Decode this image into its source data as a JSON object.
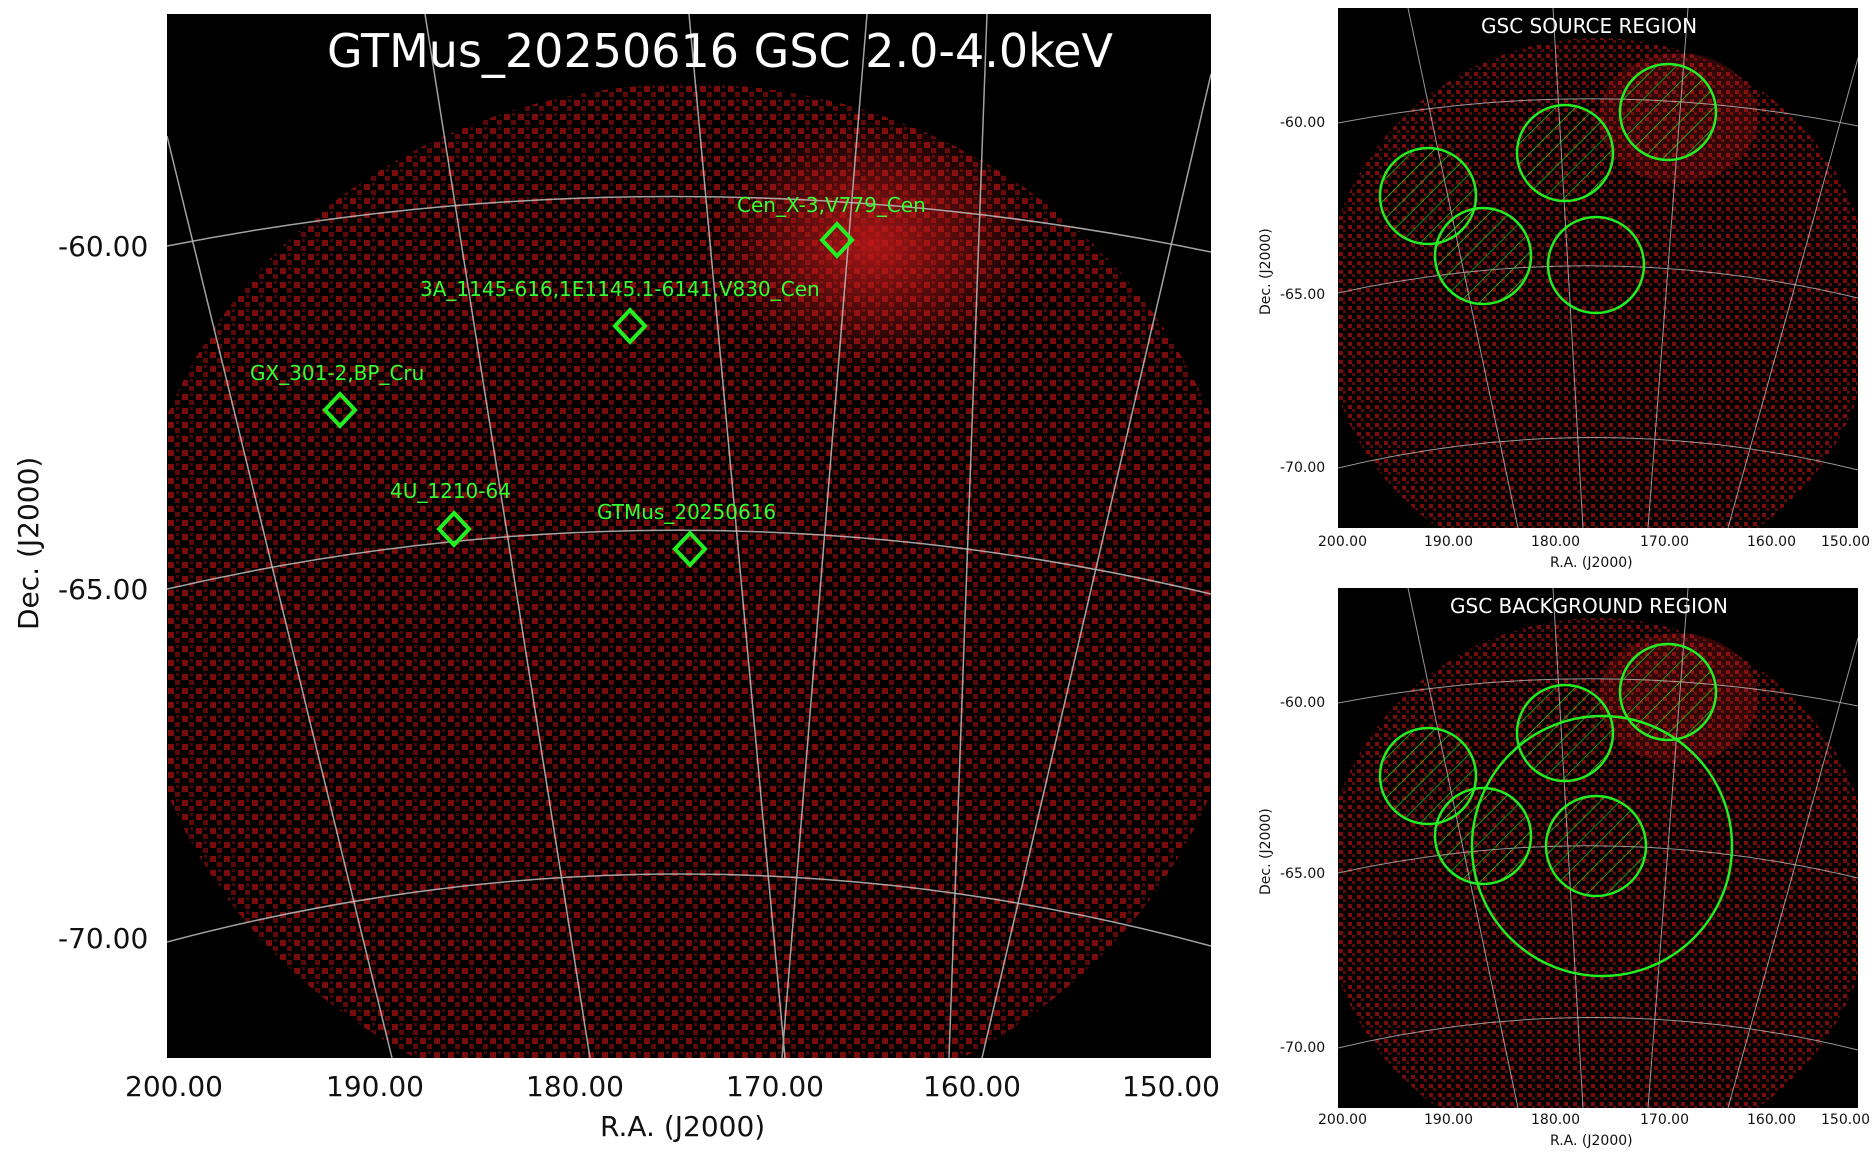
{
  "main_panel": {
    "title": "GTMus_20250616 GSC 2.0-4.0keV",
    "xlabel": "R.A. (J2000)",
    "ylabel": "Dec. (J2000)",
    "xticks": [
      "200.00",
      "190.00",
      "180.00",
      "170.00",
      "160.00",
      "150.00"
    ],
    "yticks": [
      "-60.00",
      "-65.00",
      "-70.00"
    ],
    "sources": [
      {
        "label": "Cen_X-3,V779_Cen"
      },
      {
        "label": "3A_1145-616,1E1145.1-6141,V830_Cen"
      },
      {
        "label": "GX_301-2,BP_Cru"
      },
      {
        "label": "4U_1210-64"
      },
      {
        "label": "GTMus_20250616"
      }
    ]
  },
  "source_region_panel": {
    "title": "GSC SOURCE REGION",
    "xlabel": "R.A. (J2000)",
    "ylabel": "Dec. (J2000)",
    "xticks": [
      "200.00",
      "190.00",
      "180.00",
      "170.00",
      "160.00",
      "150.00"
    ],
    "yticks": [
      "-60.00",
      "-65.00",
      "-70.00"
    ]
  },
  "background_region_panel": {
    "title": "GSC BACKGROUND REGION",
    "xlabel": "R.A. (J2000)",
    "ylabel": "Dec. (J2000)",
    "xticks": [
      "200.00",
      "190.00",
      "180.00",
      "170.00",
      "160.00",
      "150.00"
    ],
    "yticks": [
      "-60.00",
      "-65.00",
      "-70.00"
    ]
  },
  "colors": {
    "background": "#000000",
    "counts": "#8b0f0f",
    "counts_bright": "#c41a1a",
    "grid": "#bfbfbf",
    "region": "#22ee22",
    "label": "#33ff33"
  }
}
